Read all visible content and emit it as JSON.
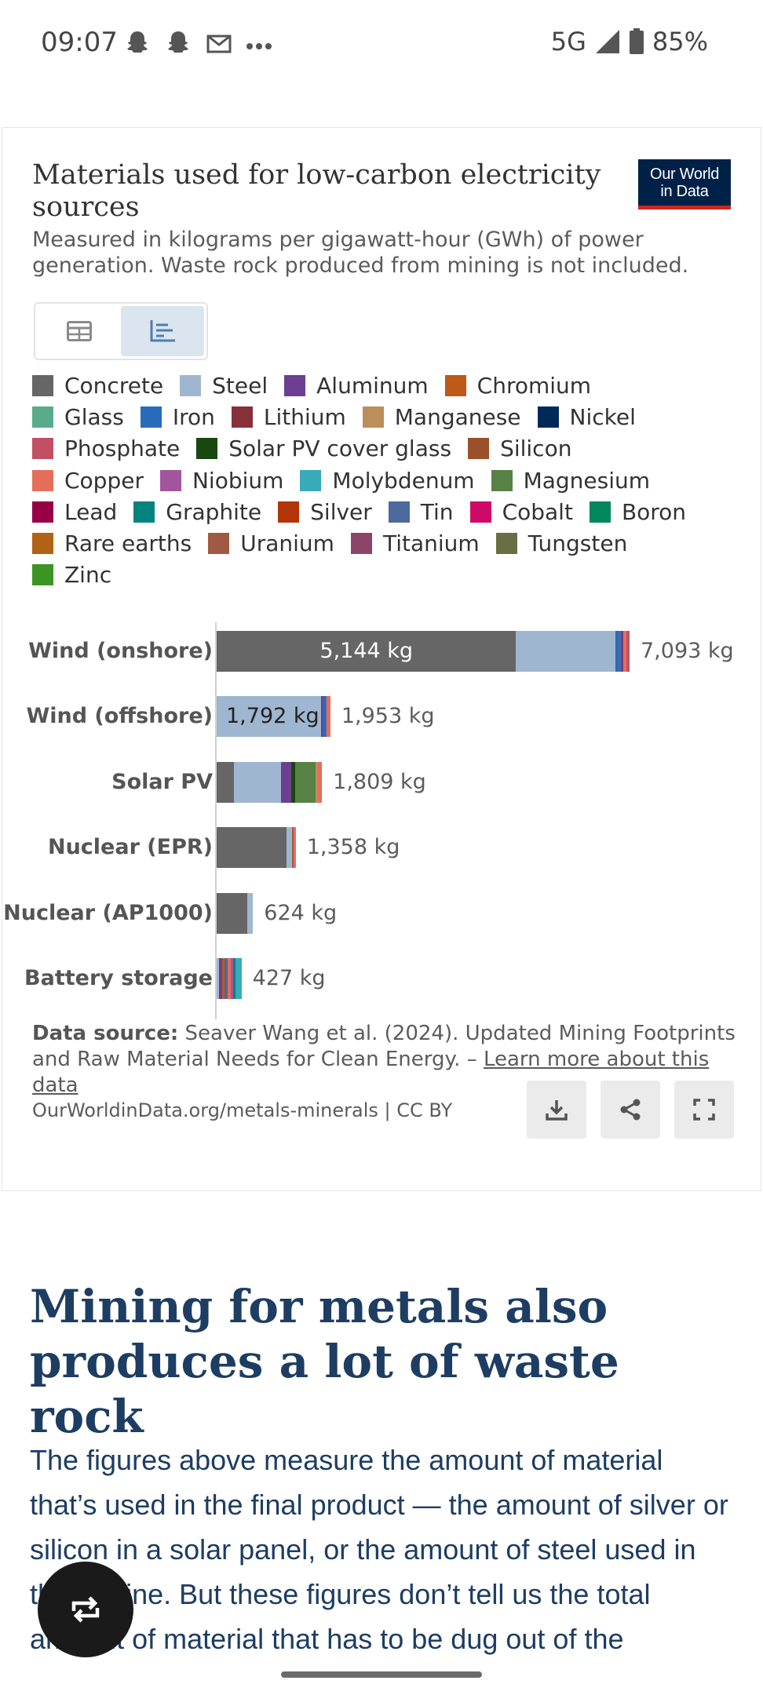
{
  "status_bar": {
    "time": "09:07",
    "network": "5G",
    "battery": "85%"
  },
  "card": {
    "title": "Materials used for low-carbon electricity sources",
    "logo_line1": "Our World",
    "logo_line2": "in Data",
    "subtitle": "Measured in kilograms per gigawatt-hour (GWh) of power generation. Waste rock produced from mining is not included.",
    "view_toggle": {
      "table_icon": "table-icon",
      "chart_icon": "bar-chart-icon",
      "selected": "chart"
    },
    "source_label": "Data source:",
    "source_text": "Seaver Wang et al. (2024). Updated Mining Footprints and Raw Material Needs for Clean Energy. –",
    "learn_more": "Learn more about this data",
    "footer_url": "OurWorldinData.org/metals-minerals | CC BY",
    "actions": [
      "download-icon",
      "share-icon",
      "fullscreen-icon"
    ]
  },
  "chart_data": {
    "type": "bar",
    "orientation": "horizontal",
    "stacked": true,
    "unit": "kg",
    "legend_placement": "top",
    "legend_rows": [
      [
        [
          "Concrete",
          "#666666"
        ],
        [
          "Steel",
          "#9fb6d0"
        ],
        [
          "Aluminum",
          "#6d3e91"
        ],
        [
          "Chromium",
          "#c05917"
        ]
      ],
      [
        [
          "Glass",
          "#58ac8c"
        ],
        [
          "Iron",
          "#286bbb"
        ],
        [
          "Lithium",
          "#883039"
        ],
        [
          "Manganese",
          "#bc8e5a"
        ],
        [
          "Nickel",
          "#00295b"
        ]
      ],
      [
        [
          "Phosphate",
          "#c15065"
        ],
        [
          "Solar PV cover glass",
          "#18470f"
        ],
        [
          "Silicon",
          "#9a5129"
        ]
      ],
      [
        [
          "Copper",
          "#e56e5a"
        ],
        [
          "Niobium",
          "#a2559c"
        ],
        [
          "Molybdenum",
          "#38aaba"
        ],
        [
          "Magnesium",
          "#578145"
        ]
      ],
      [
        [
          "Lead",
          "#970046"
        ],
        [
          "Graphite",
          "#00847e"
        ],
        [
          "Silver",
          "#b13507"
        ],
        [
          "Tin",
          "#4c6a9c"
        ],
        [
          "Cobalt",
          "#cf0a66"
        ],
        [
          "Boron",
          "#00875e"
        ]
      ],
      [
        [
          "Rare earths",
          "#b16214"
        ],
        [
          "Uranium",
          "#a05a43"
        ],
        [
          "Titanium",
          "#8c4569"
        ],
        [
          "Tungsten",
          "#6a6e44"
        ]
      ],
      [
        [
          "Zinc",
          "#3c9523"
        ]
      ]
    ],
    "categories": [
      "Wind (onshore)",
      "Wind (offshore)",
      "Solar PV",
      "Nuclear (EPR)",
      "Nuclear (AP1000)",
      "Battery storage"
    ],
    "totals": [
      "7,093 kg",
      "1,953 kg",
      "1,809 kg",
      "1,358 kg",
      "624 kg",
      "427 kg"
    ],
    "total_values": [
      7093,
      1953,
      1809,
      1358,
      624,
      427
    ],
    "bar_labels": [
      "5,144 kg",
      "1,792 kg",
      "",
      "",
      "",
      ""
    ],
    "xlim": [
      0,
      7093
    ],
    "segments": [
      [
        [
          "#666666",
          5144
        ],
        [
          "#9fb6d0",
          1700
        ],
        [
          "#286bbb",
          60
        ],
        [
          "#4c6a9c",
          40
        ],
        [
          "#6d3e91",
          40
        ],
        [
          "#e56e5a",
          50
        ],
        [
          "#c15065",
          59
        ]
      ],
      [
        [
          "#9fb6d0",
          1792
        ],
        [
          "#6d3e91",
          30
        ],
        [
          "#286bbb",
          40
        ],
        [
          "#4c6a9c",
          30
        ],
        [
          "#e56e5a",
          61
        ]
      ],
      [
        [
          "#666666",
          300
        ],
        [
          "#9fb6d0",
          800
        ],
        [
          "#6d3e91",
          180
        ],
        [
          "#18470f",
          70
        ],
        [
          "#578145",
          350
        ],
        [
          "#bc8e5a",
          40
        ],
        [
          "#e56e5a",
          69
        ]
      ],
      [
        [
          "#666666",
          1200
        ],
        [
          "#9fb6d0",
          90
        ],
        [
          "#a05a43",
          30
        ],
        [
          "#e56e5a",
          38
        ]
      ],
      [
        [
          "#666666",
          520
        ],
        [
          "#9fb6d0",
          104
        ]
      ],
      [
        [
          "#9fb6d0",
          40
        ],
        [
          "#6d3e91",
          60
        ],
        [
          "#c05917",
          30
        ],
        [
          "#4c6a9c",
          60
        ],
        [
          "#e56e5a",
          50
        ],
        [
          "#a2559c",
          40
        ],
        [
          "#00847e",
          50
        ],
        [
          "#38aaba",
          97
        ]
      ]
    ]
  },
  "article": {
    "heading": "Mining for metals also produces a lot of waste rock",
    "paragraph": "The figures above measure the amount of material that’s used in the final product — the amount of silver or silicon in a solar panel, or the amount of steel used in the turbine. But these figures don’t tell us the total amount of material that has to be dug out of the"
  },
  "fab_icon": "repost-icon"
}
